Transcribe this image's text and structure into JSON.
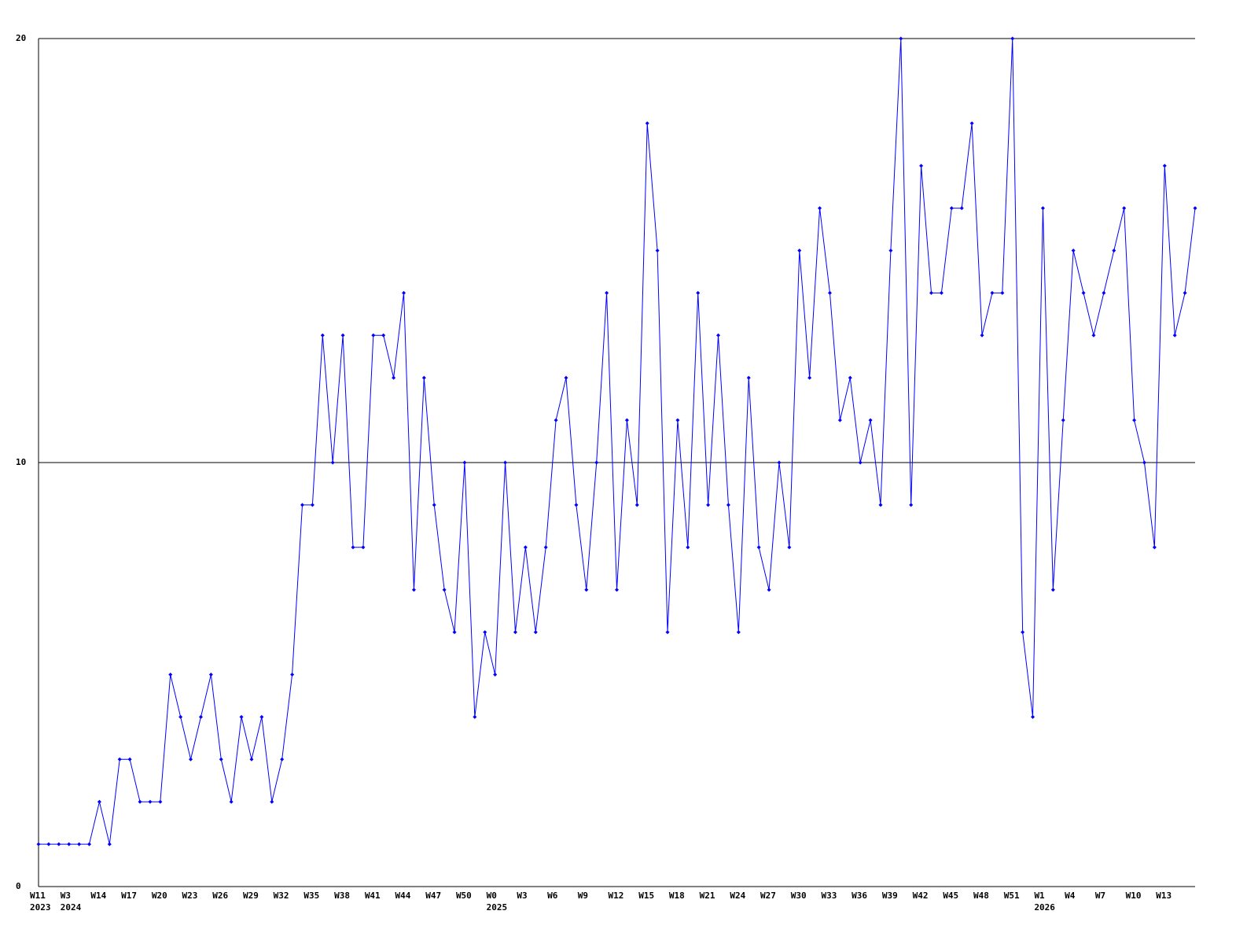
{
  "chart_data": {
    "type": "line",
    "categories": [
      "W11",
      null,
      null,
      "W3",
      null,
      null,
      "W14",
      null,
      null,
      "W17",
      null,
      null,
      "W20",
      null,
      null,
      "W23",
      null,
      null,
      "W26",
      null,
      null,
      "W29",
      null,
      null,
      "W32",
      null,
      null,
      "W35",
      null,
      null,
      "W38",
      null,
      null,
      "W41",
      null,
      null,
      "W44",
      null,
      null,
      "W47",
      null,
      null,
      "W50",
      null,
      null,
      "W0",
      null,
      null,
      "W3",
      null,
      null,
      "W6",
      null,
      null,
      "W9",
      null,
      null,
      "W12",
      null,
      null,
      "W15",
      null,
      null,
      "W18",
      null,
      null,
      "W21",
      null,
      null,
      "W24",
      null,
      null,
      "W27",
      null,
      null,
      "W30",
      null,
      null,
      "W33",
      null,
      null,
      "W36",
      null,
      null,
      "W39",
      null,
      null,
      "W42",
      null,
      null,
      "W45",
      null,
      null,
      "W48",
      null,
      null,
      "W51",
      null,
      null,
      "W1",
      null,
      null,
      "W4",
      null,
      null,
      "W7",
      null,
      null,
      "W10",
      null,
      null,
      "W13",
      null,
      null,
      null
    ],
    "category_years": [
      "2023",
      null,
      null,
      "2024",
      null,
      null,
      null,
      null,
      null,
      null,
      null,
      null,
      null,
      null,
      null,
      null,
      null,
      null,
      null,
      null,
      null,
      null,
      null,
      null,
      null,
      null,
      null,
      null,
      null,
      null,
      null,
      null,
      null,
      null,
      null,
      null,
      null,
      null,
      null,
      null,
      null,
      null,
      null,
      null,
      null,
      "2025",
      null,
      null,
      null,
      null,
      null,
      null,
      null,
      null,
      null,
      null,
      null,
      null,
      null,
      null,
      null,
      null,
      null,
      null,
      null,
      null,
      null,
      null,
      null,
      null,
      null,
      null,
      null,
      null,
      null,
      null,
      null,
      null,
      null,
      null,
      null,
      null,
      null,
      null,
      null,
      null,
      null,
      null,
      null,
      null,
      null,
      null,
      null,
      null,
      null,
      null,
      null,
      null,
      null,
      "2026",
      null,
      null,
      null,
      null,
      null,
      null,
      null,
      null,
      null,
      null,
      null,
      null,
      null,
      null,
      null
    ],
    "series": [
      {
        "color": "#0000ff",
        "values": [
          1,
          1,
          1,
          1,
          1,
          1,
          2,
          1,
          3,
          3,
          2,
          2,
          2,
          5,
          4,
          3,
          4,
          5,
          3,
          2,
          4,
          3,
          4,
          2,
          3,
          5,
          9,
          9,
          13,
          10,
          13,
          8,
          8,
          13,
          13,
          12,
          14,
          7,
          12,
          9,
          7,
          6,
          10,
          4,
          6,
          5,
          10,
          6,
          8,
          6,
          8,
          11,
          12,
          9,
          7,
          10,
          14,
          7,
          11,
          9,
          18,
          15,
          6,
          11,
          8,
          14,
          9,
          13,
          9,
          6,
          12,
          8,
          7,
          10,
          8,
          15,
          12,
          16,
          14,
          11,
          12,
          10,
          11,
          9,
          15,
          20,
          9,
          17,
          14,
          14,
          16,
          16,
          18,
          13,
          14,
          14,
          20,
          6,
          4,
          16,
          7,
          11,
          15,
          14,
          13,
          14,
          15,
          16,
          11,
          10,
          8,
          17,
          13,
          14,
          16
        ]
      }
    ],
    "ylim": [
      0,
      20
    ],
    "yticks": [
      0,
      10,
      20
    ],
    "grid": true
  }
}
